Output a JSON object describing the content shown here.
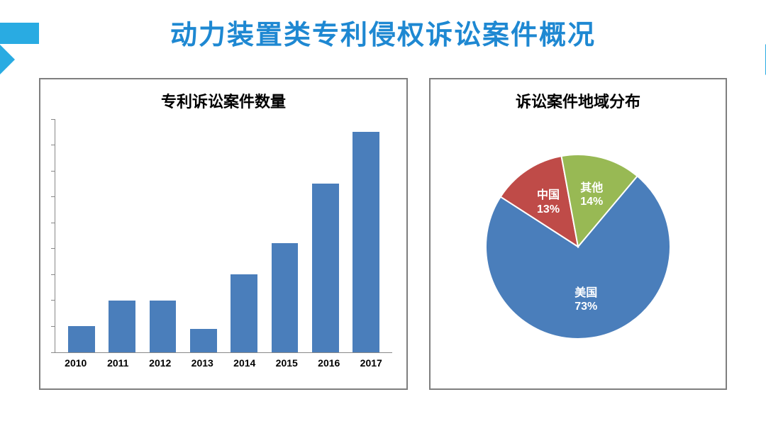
{
  "page_title": "动力装置类专利侵权诉讼案件概况",
  "title_color": "#1e88d2",
  "arrow_color": "#29abe2",
  "background_color": "#ffffff",
  "panel_border_color": "#7f7f7f",
  "bar_chart": {
    "type": "bar",
    "title": "专利诉讼案件数量",
    "title_fontsize": 22,
    "categories": [
      "2010",
      "2011",
      "2012",
      "2013",
      "2014",
      "2015",
      "2016",
      "2017"
    ],
    "values": [
      10,
      20,
      20,
      9,
      30,
      42,
      65,
      85
    ],
    "ylim": [
      0,
      90
    ],
    "ytick_step": 10,
    "bar_color": "#4a7ebb",
    "axis_color": "#888888",
    "label_fontsize": 14,
    "bar_width": 0.66
  },
  "pie_chart": {
    "type": "pie",
    "title": "诉讼案件地域分布",
    "title_fontsize": 22,
    "slices": [
      {
        "label": "美国",
        "value": 73,
        "color": "#4a7ebb"
      },
      {
        "label": "中国",
        "value": 13,
        "color": "#bf4b48"
      },
      {
        "label": "其他",
        "value": 14,
        "color": "#98b954"
      }
    ],
    "radius": 130,
    "start_angle_deg": 40,
    "label_color": "#ffffff",
    "label_fontsize": 16
  }
}
